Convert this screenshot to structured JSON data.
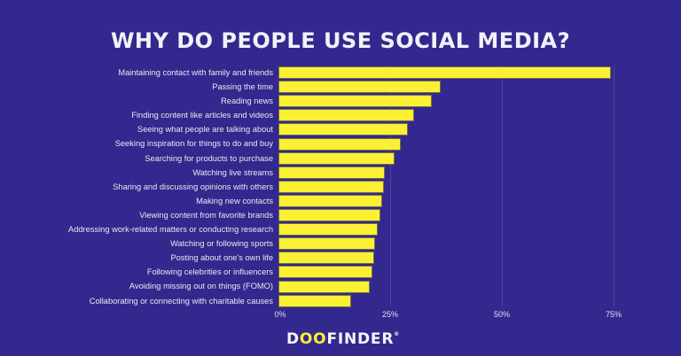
{
  "title": "WHY DO PEOPLE USE SOCIAL MEDIA?",
  "colors": {
    "background": "#33288d",
    "bar": "#fcf033",
    "text": "#f2f1f7"
  },
  "logo": {
    "prefix": "D",
    "highlight": "OO",
    "suffix": "FINDER",
    "mark": "®"
  },
  "chart_data": {
    "type": "bar",
    "orientation": "horizontal",
    "title": "WHY DO PEOPLE USE SOCIAL MEDIA?",
    "xlabel": "",
    "ylabel": "",
    "xlim": [
      0,
      78
    ],
    "x_ticks": [
      "0%",
      "25%",
      "50%",
      "75%"
    ],
    "x_tick_values": [
      0,
      25,
      50,
      75
    ],
    "grid": true,
    "legend": null,
    "categories": [
      "Maintaining contact with family and friends",
      "Passing the time",
      "Reading news",
      "Finding content like articles and videos",
      "Seeing what people are talking about",
      "Seeking inspiration for things to do and buy",
      "Searching for products to purchase",
      "Watching live streams",
      "Sharing and discussing opinions with others",
      "Making new contacts",
      "Viewing content from favorite brands",
      "Addressing work-related matters or conducting research",
      "Watching or following sports",
      "Posting about one's own life",
      "Following celebrities or influencers",
      "Avoiding missing out on things (FOMO)",
      "Collaborating or connecting with charitable causes"
    ],
    "values": [
      74.4,
      36.3,
      34.3,
      30.4,
      29.0,
      27.4,
      26.0,
      23.8,
      23.6,
      23.2,
      22.8,
      22.2,
      21.6,
      21.4,
      21.0,
      20.4,
      16.3
    ],
    "unit": "%"
  }
}
